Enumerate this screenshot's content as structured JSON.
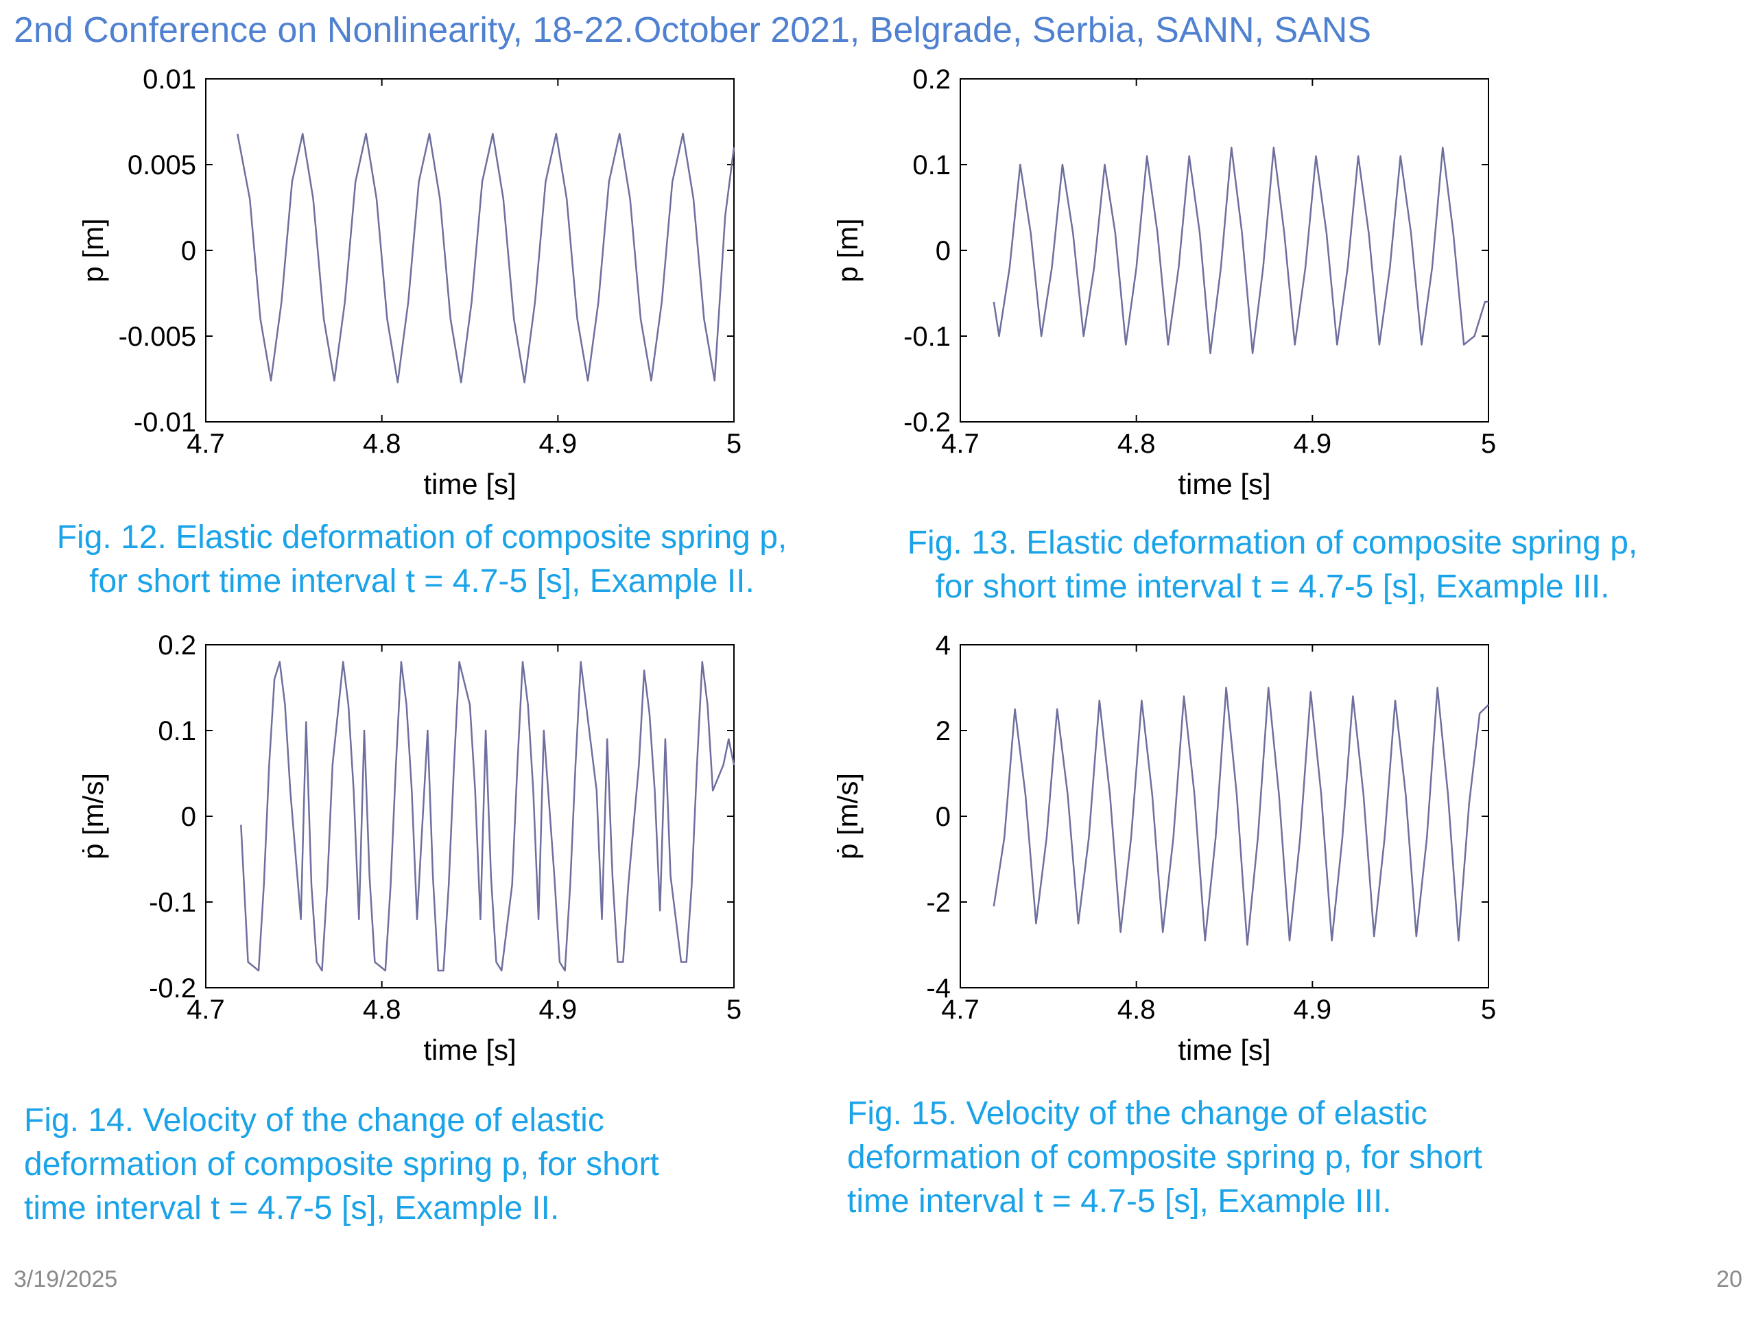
{
  "slide": {
    "header": "2nd Conference on Nonlinearity, 18-22.October 2021, Belgrade, Serbia, SANN, SANS",
    "date": "3/19/2025",
    "page_number": "20"
  },
  "colors": {
    "header": "#4f81d0",
    "caption": "#1aa3e8",
    "series": "#6f6f9f",
    "axis": "#000000"
  },
  "captions": [
    {
      "lines": [
        "Fig. 12. Elastic deformation of composite spring p,",
        "for short time interval t = 4.7-5 [s], Example II."
      ]
    },
    {
      "lines": [
        "Fig. 13. Elastic deformation of composite spring p,",
        "for short time interval t = 4.7-5 [s], Example  III."
      ]
    },
    {
      "lines": [
        "Fig.  14.  Velocity  of  the  change  of  elastic",
        "deformation  of  composite  spring  p,   for  short",
        "time interval t = 4.7-5 [s], Example II."
      ]
    },
    {
      "lines": [
        "Fig.  15.  Velocity  of  the  change  of  elastic",
        "deformation  of  composite  spring  p,   for  short",
        "time interval t = 4.7-5 [s], Example III."
      ]
    }
  ],
  "chart_data": [
    {
      "type": "line",
      "xlabel": "time [s]",
      "ylabel": "p [m]",
      "xlim": [
        4.7,
        5
      ],
      "ylim": [
        -0.01,
        0.01
      ],
      "xticks": [
        "4.7",
        "4.8",
        "4.9",
        "5"
      ],
      "yticks": [
        "-0.01",
        "-0.005",
        "0",
        "0.005",
        "0.01"
      ],
      "series": [
        {
          "x": [
            4.718,
            4.725,
            4.731,
            4.737,
            4.743,
            4.749,
            4.755,
            4.761,
            4.767,
            4.773,
            4.779,
            4.785,
            4.791,
            4.797,
            4.803,
            4.809,
            4.815,
            4.821,
            4.827,
            4.833,
            4.839,
            4.845,
            4.851,
            4.857,
            4.863,
            4.869,
            4.875,
            4.881,
            4.887,
            4.893,
            4.899,
            4.905,
            4.911,
            4.917,
            4.923,
            4.929,
            4.935,
            4.941,
            4.947,
            4.953,
            4.959,
            4.965,
            4.971,
            4.977,
            4.983,
            4.989,
            4.995,
            5.0
          ],
          "y": [
            0.0068,
            0.003,
            -0.004,
            -0.0076,
            -0.003,
            0.004,
            0.0068,
            0.003,
            -0.004,
            -0.0076,
            -0.003,
            0.004,
            0.0068,
            0.003,
            -0.004,
            -0.0077,
            -0.003,
            0.004,
            0.0068,
            0.003,
            -0.004,
            -0.0077,
            -0.003,
            0.004,
            0.0068,
            0.003,
            -0.004,
            -0.0077,
            -0.003,
            0.004,
            0.0068,
            0.003,
            -0.004,
            -0.0076,
            -0.003,
            0.004,
            0.0068,
            0.003,
            -0.004,
            -0.0076,
            -0.003,
            0.004,
            0.0068,
            0.003,
            -0.004,
            -0.0076,
            0.002,
            0.006
          ]
        }
      ]
    },
    {
      "type": "line",
      "xlabel": "time [s]",
      "ylabel": "p [m]",
      "xlim": [
        4.7,
        5
      ],
      "ylim": [
        -0.2,
        0.2
      ],
      "xticks": [
        "4.7",
        "4.8",
        "4.9",
        "5"
      ],
      "yticks": [
        "-0.2",
        "-0.1",
        "0",
        "0.1",
        "0.2"
      ],
      "series": [
        {
          "x": [
            4.719,
            4.722,
            4.728,
            4.734,
            4.74,
            4.746,
            4.752,
            4.758,
            4.764,
            4.77,
            4.776,
            4.782,
            4.788,
            4.794,
            4.8,
            4.806,
            4.812,
            4.818,
            4.824,
            4.83,
            4.836,
            4.842,
            4.848,
            4.854,
            4.86,
            4.866,
            4.872,
            4.878,
            4.884,
            4.89,
            4.896,
            4.902,
            4.908,
            4.914,
            4.92,
            4.926,
            4.932,
            4.938,
            4.944,
            4.95,
            4.956,
            4.962,
            4.968,
            4.974,
            4.98,
            4.986,
            4.992,
            4.998,
            5.0
          ],
          "y": [
            -0.06,
            -0.1,
            -0.02,
            0.1,
            0.02,
            -0.1,
            -0.02,
            0.1,
            0.02,
            -0.1,
            -0.02,
            0.1,
            0.02,
            -0.11,
            -0.02,
            0.11,
            0.02,
            -0.11,
            -0.02,
            0.11,
            0.02,
            -0.12,
            -0.02,
            0.12,
            0.02,
            -0.12,
            -0.02,
            0.12,
            0.02,
            -0.11,
            -0.02,
            0.11,
            0.02,
            -0.11,
            -0.02,
            0.11,
            0.02,
            -0.11,
            -0.02,
            0.11,
            0.02,
            -0.11,
            -0.02,
            0.12,
            0.02,
            -0.11,
            -0.1,
            -0.06,
            -0.06
          ]
        }
      ]
    },
    {
      "type": "line",
      "xlabel": "time [s]",
      "ylabel": "ṗ [m/s]",
      "xlim": [
        4.7,
        5
      ],
      "ylim": [
        -0.2,
        0.2
      ],
      "xticks": [
        "4.7",
        "4.8",
        "4.9",
        "5"
      ],
      "yticks": [
        "-0.2",
        "-0.1",
        "0",
        "0.1",
        "0.2"
      ],
      "series": [
        {
          "x": [
            4.72,
            4.724,
            4.73,
            4.733,
            4.736,
            4.739,
            4.742,
            4.745,
            4.748,
            4.754,
            4.757,
            4.76,
            4.763,
            4.766,
            4.769,
            4.772,
            4.778,
            4.781,
            4.784,
            4.787,
            4.79,
            4.793,
            4.796,
            4.802,
            4.805,
            4.808,
            4.811,
            4.814,
            4.817,
            4.82,
            4.826,
            4.829,
            4.832,
            4.835,
            4.838,
            4.841,
            4.844,
            4.85,
            4.853,
            4.856,
            4.859,
            4.862,
            4.865,
            4.868,
            4.874,
            4.877,
            4.88,
            4.883,
            4.886,
            4.889,
            4.892,
            4.898,
            4.901,
            4.904,
            4.907,
            4.91,
            4.913,
            4.916,
            4.922,
            4.925,
            4.928,
            4.931,
            4.934,
            4.937,
            4.94,
            4.946,
            4.949,
            4.952,
            4.955,
            4.958,
            4.961,
            4.964,
            4.97,
            4.973,
            4.976,
            4.979,
            4.982,
            4.985,
            4.988,
            4.994,
            4.997,
            5.0
          ],
          "y": [
            -0.01,
            -0.17,
            -0.18,
            -0.08,
            0.06,
            0.16,
            0.18,
            0.13,
            0.03,
            -0.12,
            0.11,
            -0.08,
            -0.17,
            -0.18,
            -0.08,
            0.06,
            0.18,
            0.13,
            0.03,
            -0.12,
            0.1,
            -0.07,
            -0.17,
            -0.18,
            -0.08,
            0.06,
            0.18,
            0.13,
            0.03,
            -0.12,
            0.1,
            -0.07,
            -0.18,
            -0.18,
            -0.08,
            0.06,
            0.18,
            0.13,
            0.03,
            -0.12,
            0.1,
            -0.07,
            -0.17,
            -0.18,
            -0.08,
            0.06,
            0.18,
            0.13,
            0.03,
            -0.12,
            0.1,
            -0.07,
            -0.17,
            -0.18,
            -0.08,
            0.06,
            0.18,
            0.13,
            0.03,
            -0.12,
            0.09,
            -0.07,
            -0.17,
            -0.17,
            -0.08,
            0.06,
            0.17,
            0.12,
            0.03,
            -0.11,
            0.09,
            -0.07,
            -0.17,
            -0.17,
            -0.08,
            0.06,
            0.18,
            0.13,
            0.03,
            0.06,
            0.09,
            0.06
          ]
        }
      ]
    },
    {
      "type": "line",
      "xlabel": "time [s]",
      "ylabel": "ṗ [m/s]",
      "xlim": [
        4.7,
        5
      ],
      "ylim": [
        -4,
        4
      ],
      "xticks": [
        "4.7",
        "4.8",
        "4.9",
        "5"
      ],
      "yticks": [
        "-4",
        "-2",
        "0",
        "2",
        "4"
      ],
      "series": [
        {
          "x": [
            4.719,
            4.725,
            4.731,
            4.737,
            4.743,
            4.749,
            4.755,
            4.761,
            4.767,
            4.773,
            4.779,
            4.785,
            4.791,
            4.797,
            4.803,
            4.809,
            4.815,
            4.821,
            4.827,
            4.833,
            4.839,
            4.845,
            4.851,
            4.857,
            4.863,
            4.869,
            4.875,
            4.881,
            4.887,
            4.893,
            4.899,
            4.905,
            4.911,
            4.917,
            4.923,
            4.929,
            4.935,
            4.941,
            4.947,
            4.953,
            4.959,
            4.965,
            4.971,
            4.977,
            4.983,
            4.989,
            4.995,
            5.0
          ],
          "y": [
            -2.1,
            -0.5,
            2.5,
            0.5,
            -2.5,
            -0.5,
            2.5,
            0.5,
            -2.5,
            -0.5,
            2.7,
            0.5,
            -2.7,
            -0.5,
            2.7,
            0.5,
            -2.7,
            -0.5,
            2.8,
            0.5,
            -2.9,
            -0.5,
            3.0,
            0.5,
            -3.0,
            -0.5,
            3.0,
            0.5,
            -2.9,
            -0.5,
            2.9,
            0.5,
            -2.9,
            -0.5,
            2.8,
            0.5,
            -2.8,
            -0.5,
            2.7,
            0.5,
            -2.8,
            -0.5,
            3.0,
            0.5,
            -2.9,
            0.3,
            2.4,
            2.6
          ]
        }
      ]
    }
  ]
}
